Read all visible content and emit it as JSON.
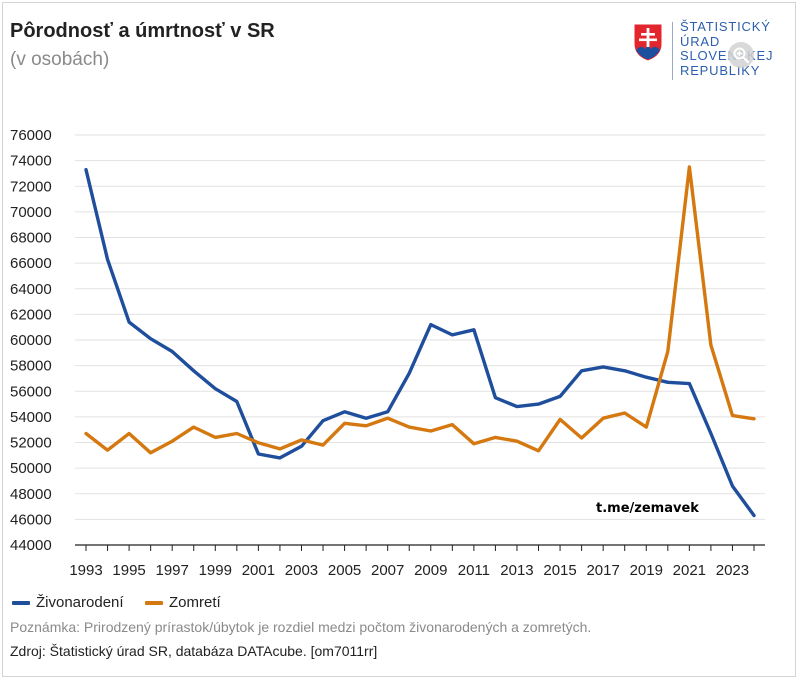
{
  "header": {
    "title": "Pôrodnosť a úmrtnosť v SR",
    "subtitle": "(v osobách)"
  },
  "logo": {
    "lines": [
      "ŠTATISTICKÝ",
      "ÚRAD",
      "SLOVENSKEJ",
      "REPUBLIKY"
    ],
    "icon": "slovak-coat-of-arms",
    "zoom_icon": "zoom-in-icon"
  },
  "chart_data": {
    "type": "line",
    "x": [
      1993,
      1994,
      1995,
      1996,
      1997,
      1998,
      1999,
      2000,
      2001,
      2002,
      2003,
      2004,
      2005,
      2006,
      2007,
      2008,
      2009,
      2010,
      2011,
      2012,
      2013,
      2014,
      2015,
      2016,
      2017,
      2018,
      2019,
      2020,
      2021,
      2022,
      2023,
      2024
    ],
    "x_ticks": [
      "1993",
      "1995",
      "1997",
      "1999",
      "2001",
      "2003",
      "2005",
      "2007",
      "2009",
      "2011",
      "2013",
      "2015",
      "2017",
      "2019",
      "2021",
      "2023"
    ],
    "y_ticks": [
      "44000",
      "46000",
      "48000",
      "50000",
      "52000",
      "54000",
      "56000",
      "58000",
      "60000",
      "62000",
      "64000",
      "66000",
      "68000",
      "70000",
      "72000",
      "74000",
      "76000"
    ],
    "ylim": [
      44000,
      76000
    ],
    "grid": "horizontal",
    "legend_position": "bottom-left",
    "series": [
      {
        "name": "Živonarodení",
        "color": "#1f4e9c",
        "values": [
          73300,
          66300,
          61400,
          60100,
          59100,
          57600,
          56200,
          55200,
          51100,
          50800,
          51700,
          53700,
          54400,
          53900,
          54400,
          57400,
          61200,
          60400,
          60800,
          55500,
          54800,
          55000,
          55600,
          57600,
          57900,
          57600,
          57100,
          56700,
          56600,
          52700,
          48600,
          46300
        ]
      },
      {
        "name": "Zomretí",
        "color": "#d4780f",
        "values": [
          52700,
          51400,
          52700,
          51200,
          52100,
          53200,
          52400,
          52700,
          51980,
          51500,
          52200,
          51800,
          53500,
          53300,
          53900,
          53200,
          52900,
          53400,
          51900,
          52400,
          52100,
          51350,
          53800,
          52350,
          53900,
          54300,
          53200,
          59100,
          73500,
          59600,
          54100,
          53850
        ]
      }
    ]
  },
  "watermark": "t.me/zemavek",
  "note": "Poznámka: Prirodzený prírastok/úbytok je rozdiel medzi počtom živonarodených a zomretých.",
  "source": "Zdroj: Štatistický úrad SR, databáza DATAcube. [om7011rr]"
}
